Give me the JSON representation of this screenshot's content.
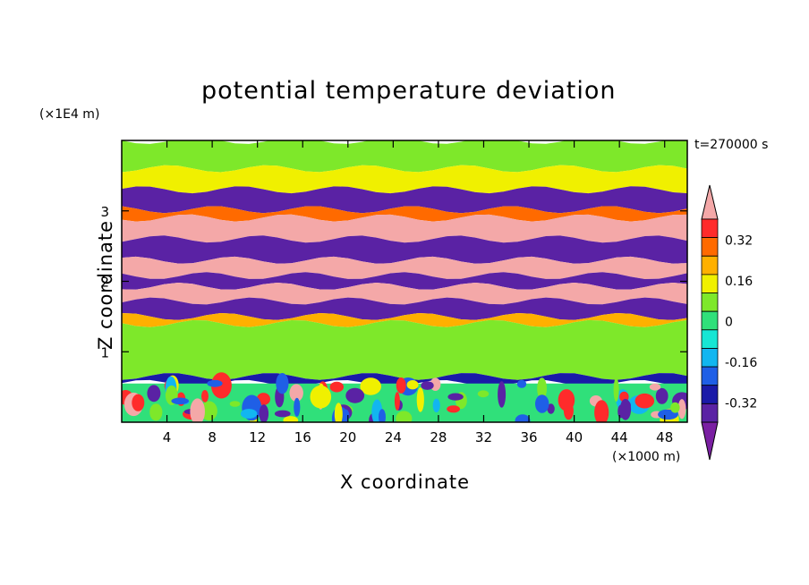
{
  "chart_data": {
    "type": "heatmap",
    "title": "potential temperature deviation",
    "time_label": "t=270000 s",
    "xlabel": "X coordinate",
    "ylabel": "Z coordinate",
    "x_unit": "(×1000 m)",
    "y_unit": "(×1E4 m)",
    "xlim": [
      0,
      50
    ],
    "ylim": [
      0,
      4
    ],
    "x_ticks": [
      "4",
      "8",
      "12",
      "16",
      "20",
      "24",
      "28",
      "32",
      "36",
      "40",
      "44",
      "48"
    ],
    "y_ticks": [
      "1",
      "2",
      "3"
    ],
    "x_tick_values": [
      4,
      8,
      12,
      16,
      20,
      24,
      28,
      32,
      36,
      40,
      44,
      48
    ],
    "y_tick_values": [
      1,
      2,
      3
    ],
    "colorbar": {
      "levels": [
        -0.48,
        -0.4,
        -0.32,
        -0.24,
        -0.16,
        -0.08,
        0,
        0.08,
        0.16,
        0.24,
        0.32,
        0.4,
        0.48
      ],
      "colors": [
        "#7a1fa2",
        "#5a22a4",
        "#1a1aa8",
        "#1f5fe6",
        "#12b6f0",
        "#16e6d4",
        "#30e07a",
        "#7ee82a",
        "#f0f000",
        "#ffb000",
        "#ff6a00",
        "#ff2b2b",
        "#f4a8a8"
      ],
      "labels": [
        "0.32",
        "0.16",
        "0",
        "-0.16",
        "-0.32"
      ],
      "label_values": [
        0.32,
        0.16,
        0,
        -0.16,
        -0.32
      ]
    },
    "layers": [
      {
        "z": [
          3.6,
          4.0
        ],
        "value": 0.05
      },
      {
        "z": [
          3.3,
          3.6
        ],
        "value": 0.1
      },
      {
        "z": [
          3.02,
          3.3
        ],
        "value": -0.42
      },
      {
        "z": [
          2.9,
          3.02
        ],
        "value": 0.3
      },
      {
        "z": [
          2.6,
          2.9
        ],
        "value": 0.45
      },
      {
        "z": [
          2.3,
          2.6
        ],
        "value": -0.45
      },
      {
        "z": [
          2.08,
          2.3
        ],
        "value": 0.45
      },
      {
        "z": [
          1.93,
          2.08
        ],
        "value": -0.42
      },
      {
        "z": [
          1.72,
          1.93
        ],
        "value": 0.44
      },
      {
        "z": [
          1.5,
          1.72
        ],
        "value": -0.4
      },
      {
        "z": [
          1.4,
          1.5
        ],
        "value": 0.2
      },
      {
        "z": [
          0.65,
          1.4
        ],
        "value": 0.02
      },
      {
        "z": [
          0.55,
          0.65
        ],
        "value": -0.36
      },
      {
        "z": [
          0.0,
          0.55
        ],
        "value": 0.0
      }
    ]
  }
}
